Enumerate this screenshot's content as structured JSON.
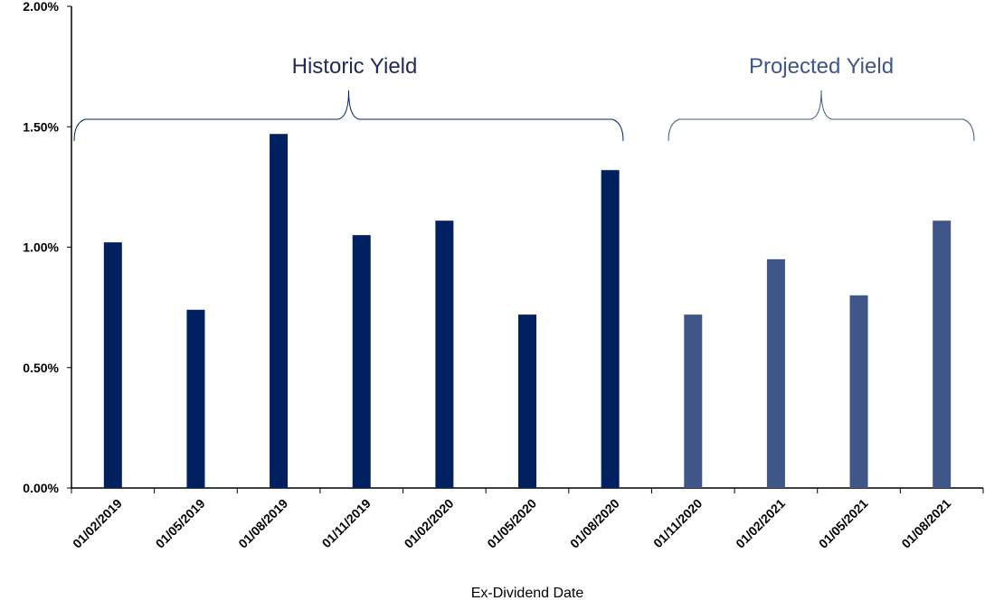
{
  "chart_data": {
    "type": "bar",
    "xlabel": "Ex-Dividend Date",
    "ylabel": "",
    "ylim": [
      0,
      0.02
    ],
    "y_ticks": [
      "0.00%",
      "0.50%",
      "1.00%",
      "1.50%",
      "2.00%"
    ],
    "categories": [
      "01/02/2019",
      "01/05/2019",
      "01/08/2019",
      "01/11/2019",
      "01/02/2020",
      "01/05/2020",
      "01/08/2020",
      "01/11/2020",
      "01/02/2021",
      "01/05/2021",
      "01/08/2021"
    ],
    "values": [
      0.0102,
      0.0074,
      0.0147,
      0.0105,
      0.0111,
      0.0072,
      0.0132,
      0.0072,
      0.0095,
      0.008,
      0.0111
    ],
    "series_groups": [
      {
        "label": "Historic Yield",
        "start": 0,
        "end": 6,
        "color": "#002060"
      },
      {
        "label": "Projected Yield",
        "start": 7,
        "end": 10,
        "color": "#3F5689"
      }
    ],
    "grid": false,
    "legend": "none"
  }
}
